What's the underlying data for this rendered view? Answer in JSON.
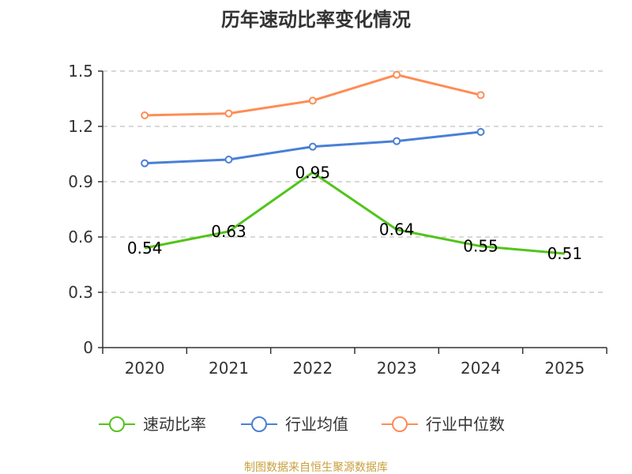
{
  "chart_data": {
    "type": "line",
    "title": "历年速动比率变化情况",
    "categories": [
      "2020",
      "2021",
      "2022",
      "2023",
      "2024",
      "2025"
    ],
    "ylim": [
      0,
      1.5
    ],
    "yticks": [
      "0",
      "0.3",
      "0.6",
      "0.9",
      "1.2",
      "1.5"
    ],
    "ytick_values": [
      0,
      0.3,
      0.6,
      0.9,
      1.2,
      1.5
    ],
    "grid": true,
    "legend_position": "bottom",
    "series": [
      {
        "name": "速动比率",
        "color": "#52c41a",
        "values": [
          0.54,
          0.63,
          0.95,
          0.64,
          0.55,
          0.51
        ],
        "labels": [
          "0.54",
          "0.63",
          "0.95",
          "0.64",
          "0.55",
          "0.51"
        ],
        "show_markers": false,
        "show_labels": true
      },
      {
        "name": "行业均值",
        "color": "#4a7fd6",
        "values": [
          1.0,
          1.02,
          1.09,
          1.12,
          1.17,
          null
        ],
        "show_markers": true,
        "show_labels": false
      },
      {
        "name": "行业中位数",
        "color": "#ff8c55",
        "values": [
          1.26,
          1.27,
          1.34,
          1.48,
          1.37,
          null
        ],
        "show_markers": true,
        "show_labels": false
      }
    ]
  },
  "footer": "制图数据来自恒生聚源数据库"
}
